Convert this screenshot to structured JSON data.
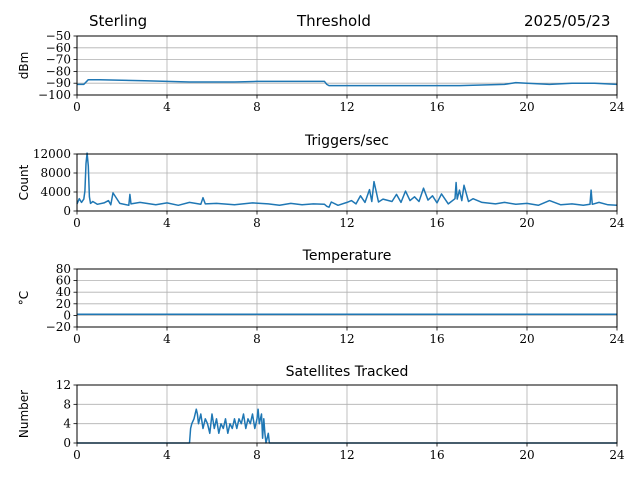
{
  "header": {
    "site": "Sterling",
    "title": "Threshold",
    "date": "2025/05/23"
  },
  "colors": {
    "series": "#1f77b4",
    "grid": "#b0b0b0",
    "axis": "#000000"
  },
  "chart_data": [
    {
      "type": "line",
      "title": "",
      "ylabel": "dBm",
      "xlim": [
        0,
        24
      ],
      "ylim": [
        -100,
        -50
      ],
      "x_ticks": [
        0,
        4,
        8,
        12,
        16,
        20,
        24
      ],
      "y_ticks": [
        -100,
        -90,
        -80,
        -70,
        -60,
        -50
      ],
      "grid": true,
      "series": [
        {
          "x": [
            0,
            0.3,
            0.5,
            1,
            2,
            3,
            4,
            5,
            6,
            7,
            8,
            9,
            10,
            11,
            11.1,
            11.2,
            12,
            13,
            14,
            15,
            16,
            17,
            18,
            19,
            19.5,
            20,
            21,
            22,
            23,
            24
          ],
          "y": [
            -91,
            -91,
            -87,
            -87,
            -87.5,
            -88,
            -88.5,
            -89,
            -89,
            -89,
            -88.5,
            -88.5,
            -88.5,
            -88.5,
            -91,
            -92,
            -92,
            -92,
            -92,
            -92,
            -92,
            -92,
            -91.5,
            -91,
            -89.5,
            -90,
            -91,
            -90,
            -90,
            -91
          ]
        }
      ]
    },
    {
      "type": "line",
      "title": "Triggers/sec",
      "ylabel": "Count",
      "xlim": [
        0,
        24
      ],
      "ylim": [
        0,
        12000
      ],
      "x_ticks": [
        0,
        4,
        8,
        12,
        16,
        20,
        24
      ],
      "y_ticks": [
        0,
        4000,
        8000,
        12000
      ],
      "grid": true,
      "series": [
        {
          "x": [
            0,
            0.1,
            0.2,
            0.3,
            0.35,
            0.4,
            0.45,
            0.5,
            0.55,
            0.6,
            0.7,
            0.9,
            1.2,
            1.4,
            1.5,
            1.6,
            1.9,
            2.3,
            2.35,
            2.4,
            2.8,
            3.5,
            4.0,
            4.5,
            5.0,
            5.5,
            5.6,
            5.7,
            6.2,
            7.0,
            7.8,
            8.5,
            9.0,
            9.5,
            10.0,
            10.5,
            11.0,
            11.1,
            11.2,
            11.3,
            11.6,
            12.0,
            12.2,
            12.4,
            12.6,
            12.8,
            13.0,
            13.1,
            13.2,
            13.4,
            13.6,
            14.0,
            14.2,
            14.4,
            14.6,
            14.8,
            15.0,
            15.2,
            15.4,
            15.6,
            15.8,
            16.0,
            16.2,
            16.5,
            16.8,
            16.85,
            16.9,
            17.0,
            17.1,
            17.2,
            17.4,
            17.6,
            18.0,
            18.6,
            19.0,
            19.5,
            20.0,
            20.5,
            21.0,
            21.5,
            22.0,
            22.5,
            22.8,
            22.85,
            22.9,
            23.2,
            23.6,
            24.0
          ],
          "y": [
            1500,
            2600,
            1800,
            2500,
            4200,
            10000,
            12200,
            9500,
            3000,
            1600,
            2000,
            1400,
            1700,
            2200,
            1300,
            3800,
            1600,
            1200,
            3500,
            1500,
            1800,
            1300,
            1700,
            1200,
            1800,
            1400,
            2800,
            1500,
            1600,
            1300,
            1700,
            1500,
            1200,
            1600,
            1300,
            1500,
            1400,
            1000,
            800,
            1900,
            1200,
            1800,
            2200,
            1500,
            3200,
            1800,
            4500,
            2000,
            6200,
            1900,
            2500,
            2000,
            3500,
            1800,
            4200,
            2200,
            3000,
            2000,
            4800,
            2300,
            3200,
            1700,
            3600,
            1500,
            2600,
            6000,
            2500,
            4400,
            2200,
            5400,
            2000,
            2600,
            1800,
            1500,
            1800,
            1400,
            1600,
            1200,
            2200,
            1300,
            1500,
            1200,
            1400,
            4400,
            1400,
            1800,
            1300,
            1200
          ]
        }
      ]
    },
    {
      "type": "line",
      "title": "Temperature",
      "ylabel": "°C",
      "xlim": [
        0,
        24
      ],
      "ylim": [
        -20,
        80
      ],
      "x_ticks": [
        0,
        4,
        8,
        12,
        16,
        20,
        24
      ],
      "y_ticks": [
        -20,
        0,
        20,
        40,
        60,
        80
      ],
      "grid": true,
      "series": [
        {
          "x": [
            0,
            24
          ],
          "y": [
            2,
            2
          ]
        }
      ]
    },
    {
      "type": "line",
      "title": "Satellites Tracked",
      "ylabel": "Number",
      "xlim": [
        0,
        24
      ],
      "ylim": [
        0,
        12
      ],
      "x_ticks": [
        0,
        4,
        8,
        12,
        16,
        20,
        24
      ],
      "y_ticks": [
        0,
        4,
        8,
        12
      ],
      "grid": true,
      "series": [
        {
          "x": [
            0,
            5.0,
            5.05,
            5.1,
            5.2,
            5.3,
            5.35,
            5.4,
            5.5,
            5.6,
            5.7,
            5.8,
            5.9,
            6.0,
            6.1,
            6.2,
            6.3,
            6.4,
            6.5,
            6.6,
            6.7,
            6.8,
            6.9,
            7.0,
            7.1,
            7.2,
            7.3,
            7.4,
            7.5,
            7.6,
            7.7,
            7.8,
            7.9,
            8.0,
            8.05,
            8.1,
            8.2,
            8.25,
            8.3,
            8.35,
            8.4,
            8.5,
            8.55,
            24
          ],
          "y": [
            0,
            0,
            3,
            4,
            5,
            7,
            6,
            4,
            6,
            3,
            5,
            4,
            2,
            6,
            3,
            5,
            2,
            4,
            3,
            5,
            2,
            4,
            3,
            5,
            3,
            5,
            4,
            6,
            3,
            5,
            4,
            6,
            3,
            5,
            7,
            4,
            6,
            1,
            5,
            2,
            0,
            2,
            0,
            0
          ]
        }
      ]
    }
  ]
}
